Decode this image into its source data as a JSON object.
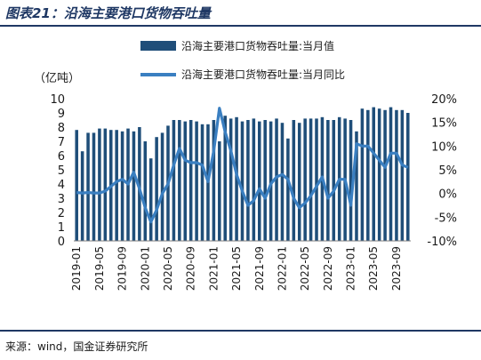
{
  "figure": {
    "title": "图表21：沿海主要港口货物吞吐量",
    "source": "来源：wind，国金证券研究所"
  },
  "chart_data": {
    "type": "bar",
    "unit_label": "（亿吨）",
    "x": [
      "2019-01",
      "2019-02",
      "2019-03",
      "2019-04",
      "2019-05",
      "2019-06",
      "2019-07",
      "2019-08",
      "2019-09",
      "2019-10",
      "2019-11",
      "2019-12",
      "2020-01",
      "2020-02",
      "2020-03",
      "2020-04",
      "2020-05",
      "2020-06",
      "2020-07",
      "2020-08",
      "2020-09",
      "2020-10",
      "2020-11",
      "2020-12",
      "2021-01",
      "2021-02",
      "2021-03",
      "2021-04",
      "2021-05",
      "2021-06",
      "2021-07",
      "2021-08",
      "2021-09",
      "2021-10",
      "2021-11",
      "2021-12",
      "2022-01",
      "2022-02",
      "2022-03",
      "2022-04",
      "2022-05",
      "2022-06",
      "2022-07",
      "2022-08",
      "2022-09",
      "2022-10",
      "2022-11",
      "2022-12",
      "2023-01",
      "2023-02",
      "2023-03",
      "2023-04",
      "2023-05",
      "2023-06",
      "2023-07",
      "2023-08",
      "2023-09",
      "2023-10",
      "2023-11"
    ],
    "tick_labels": [
      "2019-01",
      "2019-05",
      "2019-09",
      "2020-01",
      "2020-05",
      "2020-09",
      "2021-01",
      "2021-05",
      "2021-09",
      "2022-01",
      "2022-05",
      "2022-09",
      "2023-01",
      "2023-05",
      "2023-09"
    ],
    "series": [
      {
        "name": "沿海主要港口货物吞吐量:当月值",
        "kind": "bar",
        "axis": "left",
        "color": "#1f4e79",
        "values": [
          7.8,
          6.3,
          7.6,
          7.6,
          7.9,
          7.9,
          7.8,
          7.8,
          7.7,
          7.9,
          7.7,
          8.0,
          7.0,
          5.8,
          7.3,
          7.6,
          8.1,
          8.5,
          8.5,
          8.4,
          8.5,
          8.4,
          8.2,
          8.2,
          8.5,
          7.0,
          8.8,
          8.6,
          8.7,
          8.4,
          8.5,
          8.6,
          8.4,
          8.5,
          8.4,
          8.6,
          8.3,
          7.2,
          8.5,
          8.3,
          8.6,
          8.6,
          8.6,
          8.7,
          8.5,
          8.5,
          8.7,
          8.6,
          8.5,
          7.7,
          9.3,
          9.2,
          9.4,
          9.3,
          9.2,
          9.4,
          9.2,
          9.2,
          9.0
        ]
      },
      {
        "name": "沿海主要港口货物吞吐量:当月同比",
        "kind": "line",
        "axis": "right",
        "color": "#3a7fc1",
        "values": [
          0.2,
          0.1,
          0.2,
          0.1,
          0.1,
          0.5,
          1.5,
          2.5,
          3.0,
          2.0,
          4.5,
          1.0,
          -3.0,
          -6.0,
          -3.5,
          0.0,
          2.0,
          6.0,
          9.5,
          7.0,
          6.5,
          6.5,
          6.0,
          2.5,
          9.0,
          18.0,
          13.0,
          9.0,
          4.0,
          0.5,
          -2.5,
          -1.5,
          1.0,
          -1.0,
          2.0,
          3.5,
          4.0,
          3.0,
          -1.0,
          -3.0,
          -2.0,
          -0.5,
          1.5,
          3.5,
          -1.0,
          0.5,
          3.0,
          3.0,
          -2.5,
          10.5,
          10.0,
          10.0,
          8.5,
          7.0,
          5.5,
          8.5,
          8.5,
          6.0,
          5.5
        ]
      }
    ],
    "y_left": {
      "min": 0,
      "max": 10,
      "ticks": [
        0,
        1,
        2,
        3,
        4,
        5,
        6,
        7,
        8,
        9,
        10
      ]
    },
    "y_right": {
      "min": -10,
      "max": 20,
      "ticks": [
        "-10%",
        "-5%",
        "0%",
        "5%",
        "10%",
        "15%",
        "20%"
      ],
      "tick_values": [
        -10,
        -5,
        0,
        5,
        10,
        15,
        20
      ]
    },
    "legend_placement": "top",
    "grid": false
  }
}
